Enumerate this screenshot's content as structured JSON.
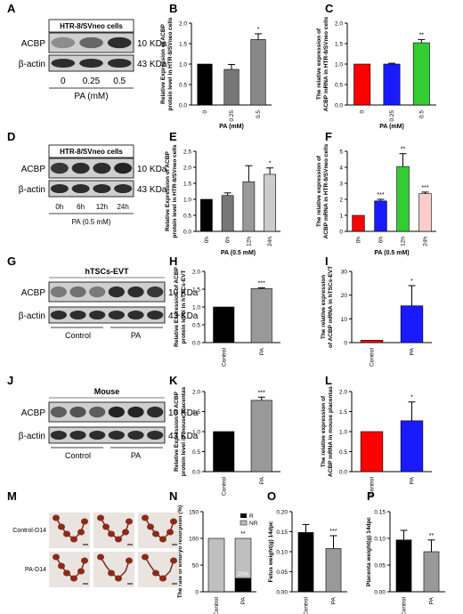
{
  "panels": [
    {
      "id": "A",
      "kind": "blot",
      "title": "HTR-8/SVneo cells",
      "rows": [
        {
          "label": "ACBP",
          "size": "10 KDa"
        },
        {
          "label": "β-actin",
          "size": "43 KDa"
        }
      ],
      "lanes": [
        "0",
        "0.25",
        "0.5"
      ],
      "xlabel": "PA (mM)"
    },
    {
      "id": "B",
      "kind": "bar",
      "type": "bar",
      "ylabel": "Relative Expression of ACBP protein level in HTR-8/SVneo cells",
      "xlabel": "PA (mM)",
      "categories": [
        "0",
        "0.25",
        "0.5"
      ],
      "values": [
        1.0,
        0.87,
        1.6
      ],
      "errors": [
        0,
        0.12,
        0.14
      ],
      "sig": [
        "",
        "",
        "*"
      ],
      "colors": [
        "#000000",
        "#777777",
        "#888888"
      ],
      "ylim": [
        0,
        2.0
      ],
      "yticks": [
        "0.0",
        "0.5",
        "1.0",
        "1.5",
        "2.0"
      ],
      "rot": true
    },
    {
      "id": "C",
      "kind": "bar",
      "type": "bar",
      "ylabel": "The relative expression of ACBP mRNA in HTR-8/SVneo cells",
      "xlabel": "PA (mM)",
      "categories": [
        "0",
        "0.25",
        "0.5"
      ],
      "values": [
        1.0,
        1.0,
        1.52
      ],
      "errors": [
        0,
        0.02,
        0.08
      ],
      "sig": [
        "",
        "",
        "**"
      ],
      "colors": [
        "#ff0000",
        "#1a1aff",
        "#33cc33"
      ],
      "ylim": [
        0,
        2.0
      ],
      "yticks": [
        "0.0",
        "0.5",
        "1.0",
        "1.5",
        "2.0"
      ],
      "rot": true
    },
    {
      "id": "D",
      "kind": "blot",
      "title": "HTR-8/SVneo cells",
      "rows": [
        {
          "label": "ACBP",
          "size": "10 KDa"
        },
        {
          "label": "β-actin",
          "size": "43 KDa"
        }
      ],
      "lanes": [
        "0h",
        "6h",
        "12h",
        "24h"
      ],
      "xlabel": "PA (0.5 mM)"
    },
    {
      "id": "E",
      "kind": "bar",
      "type": "bar",
      "ylabel": "Relative Expression of ACBP protein level in HTR-8/SVneo cells",
      "xlabel": "PA (0.5 mM)",
      "categories": [
        "0h",
        "6h",
        "12h",
        "24h"
      ],
      "values": [
        1.0,
        1.12,
        1.55,
        1.78
      ],
      "errors": [
        0,
        0.08,
        0.5,
        0.2
      ],
      "sig": [
        "",
        "",
        "",
        "*"
      ],
      "colors": [
        "#000000",
        "#777777",
        "#999999",
        "#cccccc"
      ],
      "ylim": [
        0,
        2.5
      ],
      "yticks": [
        "0.0",
        "0.5",
        "1.0",
        "1.5",
        "2.0",
        "2.5"
      ],
      "rot": true
    },
    {
      "id": "F",
      "kind": "bar",
      "type": "bar",
      "ylabel": "The relative expression of ACBP mRNA in HTR-8/SVneo cells",
      "xlabel": "PA (0.5 mM)",
      "categories": [
        "0h",
        "6h",
        "12h",
        "24h"
      ],
      "values": [
        1.0,
        1.9,
        4.05,
        2.35
      ],
      "errors": [
        0,
        0.1,
        0.8,
        0.1
      ],
      "sig": [
        "",
        "***",
        "**",
        "***"
      ],
      "colors": [
        "#ff0000",
        "#1a1aff",
        "#33cc33",
        "#ffcccc"
      ],
      "ylim": [
        0,
        5
      ],
      "yticks": [
        "0",
        "1",
        "2",
        "3",
        "4",
        "5"
      ],
      "rot": true
    },
    {
      "id": "G",
      "kind": "blot",
      "title": "hTSCs-EVT",
      "rows": [
        {
          "label": "ACBP",
          "size": "10 KDa"
        },
        {
          "label": "β-actin",
          "size": "43 KDa"
        }
      ],
      "groups": [
        "Control",
        "PA"
      ],
      "lanecount": 6
    },
    {
      "id": "H",
      "kind": "bar",
      "type": "bar",
      "ylabel": "Relative Expression of ACBP protein level in hTSCs-EVT",
      "xlabel": "",
      "categories": [
        "Control",
        "PA"
      ],
      "values": [
        1.0,
        1.52
      ],
      "errors": [
        0,
        0.02
      ],
      "sig": [
        "",
        "***"
      ],
      "colors": [
        "#000000",
        "#999999"
      ],
      "ylim": [
        0,
        2.0
      ],
      "yticks": [
        "0.0",
        "0.5",
        "1.0",
        "1.5",
        "2.0"
      ],
      "rot": true
    },
    {
      "id": "I",
      "kind": "bar",
      "type": "bar",
      "ylabel": "The relative expression of ACBP mRNA in hTSCs-EVT",
      "xlabel": "",
      "categories": [
        "Control",
        "PA"
      ],
      "values": [
        1.0,
        15.5
      ],
      "errors": [
        0,
        8.5
      ],
      "sig": [
        "",
        "*"
      ],
      "colors": [
        "#ff0000",
        "#1a1aff"
      ],
      "ylim": [
        0,
        30
      ],
      "yticks": [
        "0",
        "10",
        "20",
        "30"
      ],
      "rot": true
    },
    {
      "id": "J",
      "kind": "blot",
      "title": "Mouse",
      "rows": [
        {
          "label": "ACBP",
          "size": "10 KDa"
        },
        {
          "label": "β-actin",
          "size": "43 KDa"
        }
      ],
      "groups": [
        "Control",
        "PA"
      ],
      "lanecount": 6
    },
    {
      "id": "K",
      "kind": "bar",
      "type": "bar",
      "ylabel": "Relative Expression of ACBP protein level in mouse placentas",
      "xlabel": "",
      "categories": [
        "Control",
        "PA"
      ],
      "values": [
        1.0,
        1.78
      ],
      "errors": [
        0,
        0.08
      ],
      "sig": [
        "",
        "***"
      ],
      "colors": [
        "#000000",
        "#999999"
      ],
      "ylim": [
        0,
        2.0
      ],
      "yticks": [
        "0.0",
        "0.5",
        "1.0",
        "1.5",
        "2.0"
      ],
      "rot": true
    },
    {
      "id": "L",
      "kind": "bar",
      "type": "bar",
      "ylabel": "The relative expression of ACBP mRNA in mouse placentas",
      "xlabel": "",
      "categories": [
        "Control",
        "PA"
      ],
      "values": [
        1.0,
        1.27
      ],
      "errors": [
        0,
        0.47
      ],
      "sig": [
        "",
        "*"
      ],
      "colors": [
        "#ff0000",
        "#1a1aff"
      ],
      "ylim": [
        0,
        2.0
      ],
      "yticks": [
        "0.0",
        "0.5",
        "1.0",
        "1.5",
        "2.0"
      ],
      "rot": true
    },
    {
      "id": "M",
      "kind": "photo",
      "rows": [
        "Control-D14",
        "PA-D14"
      ]
    },
    {
      "id": "N",
      "kind": "stack",
      "type": "bar",
      "ylabel": "The rate of embryo resorption (%)",
      "categories": [
        "Control",
        "PA"
      ],
      "r": [
        0,
        25
      ],
      "nr": [
        100,
        75
      ],
      "legend": [
        "R",
        "NR"
      ],
      "annotation": "25%",
      "sig": [
        "",
        "**"
      ],
      "ylim": [
        0,
        150
      ],
      "yticks": [
        "0",
        "50",
        "100",
        "150"
      ]
    },
    {
      "id": "O",
      "kind": "bar",
      "type": "bar",
      "ylabel": "Fetus weight(g) 14dpc",
      "xlabel": "",
      "categories": [
        "Control",
        "PA"
      ],
      "values": [
        0.148,
        0.108
      ],
      "errors": [
        0.02,
        0.032
      ],
      "sig": [
        "",
        "***"
      ],
      "colors": [
        "#000000",
        "#999999"
      ],
      "ylim": [
        0,
        0.2
      ],
      "yticks": [
        "0.00",
        "0.05",
        "0.10",
        "0.15",
        "0.20"
      ],
      "rot": true
    },
    {
      "id": "P",
      "kind": "bar",
      "type": "bar",
      "ylabel": "Placenta weight(g) 14dpc",
      "xlabel": "",
      "categories": [
        "Control",
        "PA"
      ],
      "values": [
        0.097,
        0.075
      ],
      "errors": [
        0.018,
        0.022
      ],
      "sig": [
        "",
        "**"
      ],
      "colors": [
        "#000000",
        "#999999"
      ],
      "ylim": [
        0,
        0.15
      ],
      "yticks": [
        "0.00",
        "0.05",
        "0.10",
        "0.15"
      ],
      "rot": true
    }
  ]
}
